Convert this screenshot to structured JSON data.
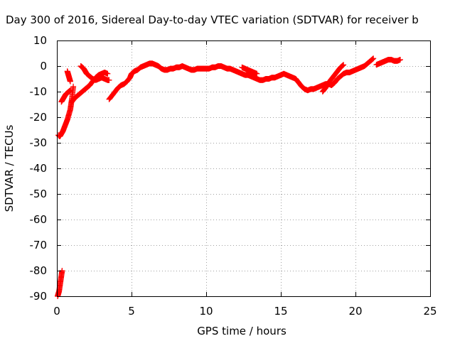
{
  "chart_data": {
    "type": "scatter",
    "title": "Day 300 of 2016, Sidereal Day-to-day VTEC variation (SDTVAR) for receiver b",
    "xlabel": "GPS time / hours",
    "ylabel": "SDTVAR / TECUs",
    "xlim": [
      0,
      25
    ],
    "ylim": [
      -90,
      10
    ],
    "xticks": [
      0,
      5,
      10,
      15,
      20,
      25
    ],
    "yticks": [
      -90,
      -80,
      -70,
      -60,
      -50,
      -40,
      -30,
      -20,
      -10,
      0,
      10
    ],
    "grid": true,
    "marker": "plus",
    "color": "#ff0000",
    "series": [
      {
        "values": [
          [
            0.05,
            -90
          ],
          [
            0.1,
            -89
          ],
          [
            0.15,
            -88
          ],
          [
            0.2,
            -86
          ],
          [
            0.25,
            -84
          ],
          [
            0.3,
            -82
          ],
          [
            0.35,
            -80
          ]
        ]
      },
      {
        "values": [
          [
            0.1,
            -27
          ],
          [
            0.2,
            -27.5
          ],
          [
            0.3,
            -26.5
          ],
          [
            0.4,
            -25.5
          ],
          [
            0.5,
            -24
          ],
          [
            0.6,
            -22.5
          ],
          [
            0.7,
            -21
          ],
          [
            0.8,
            -19
          ],
          [
            0.9,
            -17
          ],
          [
            0.95,
            -15
          ],
          [
            1.0,
            -13
          ],
          [
            1.05,
            -10.5
          ],
          [
            1.1,
            -8
          ]
        ]
      },
      {
        "values": [
          [
            0.3,
            -14
          ],
          [
            0.4,
            -13
          ],
          [
            0.5,
            -12
          ],
          [
            0.6,
            -11
          ],
          [
            0.7,
            -10.5
          ],
          [
            0.8,
            -10
          ],
          [
            0.9,
            -9.5
          ]
        ]
      },
      {
        "values": [
          [
            0.7,
            -2
          ],
          [
            0.75,
            -3
          ],
          [
            0.8,
            -4
          ],
          [
            0.85,
            -5
          ],
          [
            0.9,
            -6
          ]
        ]
      },
      {
        "values": [
          [
            1.0,
            -14
          ],
          [
            1.2,
            -12.5
          ],
          [
            1.4,
            -11.5
          ],
          [
            1.6,
            -10.5
          ],
          [
            1.8,
            -9.5
          ],
          [
            2.0,
            -8.5
          ],
          [
            2.2,
            -7.5
          ],
          [
            2.4,
            -6
          ],
          [
            2.6,
            -4.5
          ],
          [
            2.8,
            -3.5
          ],
          [
            3.0,
            -3
          ],
          [
            3.2,
            -2.5
          ],
          [
            3.4,
            -3
          ]
        ]
      },
      {
        "values": [
          [
            1.6,
            0
          ],
          [
            1.7,
            -0.5
          ],
          [
            1.8,
            -1
          ],
          [
            1.9,
            -2
          ],
          [
            2.0,
            -3
          ],
          [
            2.2,
            -4
          ],
          [
            2.4,
            -5
          ],
          [
            2.6,
            -5.5
          ],
          [
            2.8,
            -5
          ],
          [
            3.0,
            -4.5
          ],
          [
            3.2,
            -5
          ],
          [
            3.4,
            -5.5
          ],
          [
            3.5,
            -5.5
          ]
        ]
      },
      {
        "values": [
          [
            3.5,
            -13
          ],
          [
            3.7,
            -11.5
          ],
          [
            3.9,
            -10
          ],
          [
            4.1,
            -8.5
          ],
          [
            4.3,
            -7.5
          ],
          [
            4.5,
            -7
          ],
          [
            4.7,
            -6
          ],
          [
            4.9,
            -4.5
          ],
          [
            5.0,
            -3
          ],
          [
            5.2,
            -2
          ],
          [
            5.4,
            -1.5
          ],
          [
            5.6,
            -0.5
          ],
          [
            5.8,
            0
          ],
          [
            6.0,
            0.5
          ],
          [
            6.2,
            1
          ],
          [
            6.4,
            1
          ],
          [
            6.6,
            0.5
          ],
          [
            6.8,
            0
          ],
          [
            7.0,
            -1
          ],
          [
            7.2,
            -1.5
          ],
          [
            7.4,
            -1.5
          ],
          [
            7.6,
            -1
          ],
          [
            7.8,
            -1
          ],
          [
            8.0,
            -0.5
          ],
          [
            8.2,
            -0.5
          ],
          [
            8.4,
            0
          ],
          [
            8.6,
            -0.5
          ],
          [
            8.8,
            -1
          ],
          [
            9.0,
            -1.5
          ],
          [
            9.2,
            -1.5
          ],
          [
            9.4,
            -1
          ],
          [
            9.6,
            -1
          ],
          [
            9.8,
            -1
          ],
          [
            10.0,
            -1
          ],
          [
            10.2,
            -1
          ],
          [
            10.4,
            -0.5
          ],
          [
            10.6,
            -0.5
          ],
          [
            10.8,
            0
          ],
          [
            11.0,
            0
          ],
          [
            11.2,
            -0.5
          ],
          [
            11.4,
            -1
          ],
          [
            11.6,
            -1
          ],
          [
            11.8,
            -1.5
          ],
          [
            12.0,
            -2
          ],
          [
            12.2,
            -2.5
          ],
          [
            12.4,
            -3
          ],
          [
            12.6,
            -3.5
          ],
          [
            12.8,
            -3.5
          ],
          [
            13.0,
            -4
          ],
          [
            13.2,
            -4.5
          ],
          [
            13.4,
            -5
          ],
          [
            13.6,
            -5.5
          ],
          [
            13.8,
            -5.5
          ],
          [
            14.0,
            -5
          ],
          [
            14.2,
            -5
          ],
          [
            14.4,
            -4.5
          ],
          [
            14.6,
            -4.5
          ],
          [
            14.8,
            -4
          ],
          [
            15.0,
            -3.5
          ],
          [
            15.2,
            -3
          ],
          [
            15.4,
            -3.5
          ],
          [
            15.6,
            -4
          ],
          [
            15.8,
            -4.5
          ],
          [
            16.0,
            -5
          ],
          [
            16.2,
            -6.5
          ],
          [
            16.4,
            -8
          ],
          [
            16.6,
            -9
          ],
          [
            16.8,
            -9.5
          ],
          [
            17.0,
            -9
          ],
          [
            17.2,
            -9
          ],
          [
            17.4,
            -8.5
          ],
          [
            17.6,
            -8
          ],
          [
            17.8,
            -7.5
          ],
          [
            18.0,
            -7
          ],
          [
            18.2,
            -7
          ],
          [
            18.4,
            -7.5
          ],
          [
            18.6,
            -6.5
          ],
          [
            18.8,
            -5
          ],
          [
            19.0,
            -4
          ],
          [
            19.2,
            -3
          ],
          [
            19.4,
            -2.5
          ],
          [
            19.6,
            -2.5
          ],
          [
            19.8,
            -2
          ],
          [
            20.0,
            -1.5
          ],
          [
            20.2,
            -1
          ],
          [
            20.4,
            -0.5
          ],
          [
            20.6,
            0
          ],
          [
            20.8,
            1
          ],
          [
            21.0,
            2
          ],
          [
            21.2,
            3
          ]
        ]
      },
      {
        "values": [
          [
            12.4,
            -0.5
          ],
          [
            12.6,
            -1
          ],
          [
            12.8,
            -1.5
          ],
          [
            13.0,
            -2
          ],
          [
            13.2,
            -2.5
          ],
          [
            13.4,
            -3
          ]
        ]
      },
      {
        "values": [
          [
            17.8,
            -10
          ],
          [
            18.0,
            -8.5
          ],
          [
            18.2,
            -6.5
          ],
          [
            18.4,
            -5
          ],
          [
            18.6,
            -3.5
          ],
          [
            18.8,
            -2
          ],
          [
            19.0,
            -0.5
          ],
          [
            19.2,
            0.5
          ]
        ]
      },
      {
        "values": [
          [
            21.4,
            0.5
          ],
          [
            21.6,
            1
          ],
          [
            21.8,
            1.5
          ],
          [
            22.0,
            2
          ],
          [
            22.2,
            2.5
          ],
          [
            22.4,
            2.5
          ],
          [
            22.6,
            2
          ],
          [
            22.8,
            2
          ],
          [
            23.0,
            2.5
          ]
        ]
      }
    ]
  }
}
